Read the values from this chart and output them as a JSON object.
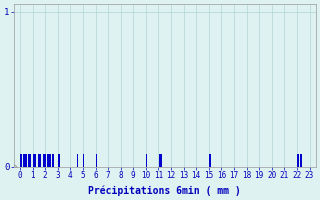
{
  "title": "",
  "xlabel": "Précipitations 6min ( mm )",
  "ylabel": "",
  "background_color": "#dff2f2",
  "bar_color": "#0000cc",
  "grid_color": "#b0d4d4",
  "axis_color": "#999999",
  "text_color": "#0000bb",
  "ylim": [
    0,
    1.05
  ],
  "xlim": [
    -0.5,
    23.5
  ],
  "yticks": [
    0,
    1
  ],
  "xticks": [
    0,
    1,
    2,
    3,
    4,
    5,
    6,
    7,
    8,
    9,
    10,
    11,
    12,
    13,
    14,
    15,
    16,
    17,
    18,
    19,
    20,
    21,
    22,
    23
  ],
  "bars": [
    [
      0.05,
      0.08
    ],
    [
      0.15,
      0.08
    ],
    [
      0.25,
      0.08
    ],
    [
      0.35,
      0.08
    ],
    [
      0.45,
      0.08
    ],
    [
      0.55,
      0.08
    ],
    [
      0.65,
      0.08
    ],
    [
      0.75,
      0.08
    ],
    [
      0.85,
      0.08
    ],
    [
      0.95,
      0.08
    ],
    [
      1.05,
      0.08
    ],
    [
      1.15,
      0.08
    ],
    [
      1.25,
      0.08
    ],
    [
      1.35,
      0.08
    ],
    [
      1.45,
      0.08
    ],
    [
      1.55,
      0.08
    ],
    [
      1.65,
      0.08
    ],
    [
      1.75,
      0.08
    ],
    [
      1.85,
      0.08
    ],
    [
      1.95,
      0.08
    ],
    [
      2.05,
      0.08
    ],
    [
      2.15,
      0.08
    ],
    [
      2.25,
      0.08
    ],
    [
      2.35,
      0.08
    ],
    [
      2.45,
      0.08
    ],
    [
      2.55,
      0.08
    ],
    [
      2.65,
      0.08
    ],
    [
      3.05,
      0.08
    ],
    [
      3.15,
      0.08
    ],
    [
      4.05,
      0.08
    ],
    [
      4.55,
      0.08
    ],
    [
      5.05,
      0.08
    ],
    [
      6.05,
      0.08
    ],
    [
      10.05,
      0.08
    ],
    [
      11.05,
      0.08
    ],
    [
      11.15,
      0.08
    ],
    [
      11.25,
      0.08
    ],
    [
      15.05,
      0.08
    ],
    [
      15.15,
      0.08
    ],
    [
      22.05,
      0.08
    ],
    [
      22.15,
      0.08
    ],
    [
      22.25,
      0.08
    ],
    [
      22.35,
      0.08
    ]
  ],
  "bar_width": 0.07,
  "xlabel_fontsize": 7,
  "tick_fontsize": 5.5
}
